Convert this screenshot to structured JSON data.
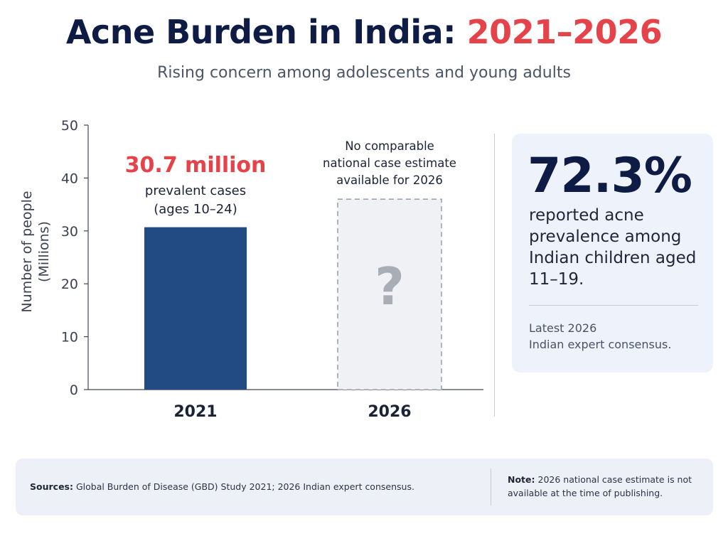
{
  "header": {
    "title_main": "Acne Burden in India: ",
    "title_accent": "2021–2026",
    "subtitle": "Rising concern among adolescents and young adults"
  },
  "colors": {
    "bar_2021": "#224b84",
    "placeholder_fill": "#f0f1f4",
    "placeholder_border": "#9aa3af",
    "accent_red": "#e5424a",
    "navy": "#0d1b45",
    "card_bg": "#eef3fb"
  },
  "chart_data": {
    "type": "bar",
    "categories": [
      "2021",
      "2026"
    ],
    "values": [
      30.7,
      null
    ],
    "placeholder_values": [
      null,
      36
    ],
    "ylim": [
      0,
      50
    ],
    "yticks": [
      0,
      10,
      20,
      30,
      40,
      50
    ],
    "ylabel_line1": "Number of people",
    "ylabel_line2": "(Millions)",
    "grid": false,
    "annotations": {
      "bar1_value": "30.7 million",
      "bar1_line1": "prevalent cases",
      "bar1_line2": "(ages 10–24)",
      "bar2_line1": "No comparable",
      "bar2_line2": "national case estimate",
      "bar2_line3": "available for 2026",
      "bar2_symbol": "?"
    }
  },
  "stat_card": {
    "value": "72.3%",
    "description": "reported acne prevalence among Indian children aged 11–19.",
    "source_line1": "Latest 2026",
    "source_line2": "Indian expert consensus."
  },
  "footer": {
    "sources_label": "Sources:",
    "sources_text": " Global Burden of Disease (GBD) Study 2021; 2026 Indian expert consensus.",
    "note_label": "Note:",
    "note_text": " 2026 national case estimate is not available at the time of publishing."
  }
}
